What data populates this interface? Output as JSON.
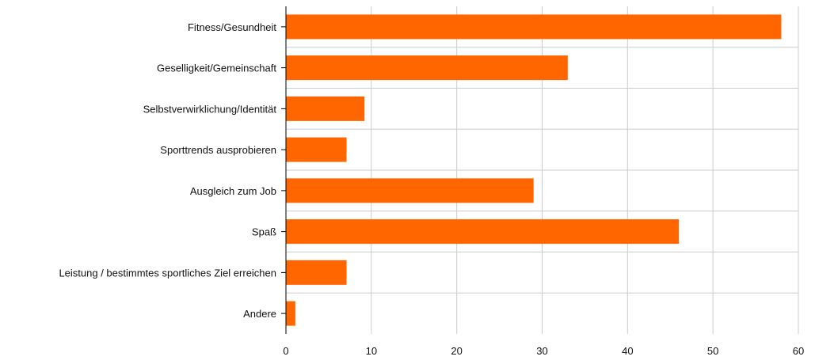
{
  "chart_data": {
    "type": "bar",
    "orientation": "horizontal",
    "title": "",
    "xlabel": "",
    "ylabel": "",
    "categories": [
      "Fitness/Gesundheit",
      "Geselligkeit/Gemeinschaft",
      "Selbstverwirklichung/Identität",
      "Sporttrends ausprobieren",
      "Ausgleich zum Job",
      "Spaß",
      "Leistung / bestimmtes sportliches Ziel erreichen",
      "Andere"
    ],
    "values": [
      58,
      33,
      9.2,
      7.1,
      29,
      46,
      7.1,
      1.1
    ],
    "xlim": [
      0,
      60
    ],
    "xticks": [
      "0",
      "10",
      "20",
      "30",
      "40",
      "50",
      "60"
    ],
    "grid": true,
    "legend": "none",
    "colors": {
      "bar": "#ff6600",
      "grid": "#cccccc",
      "axis": "#000000"
    }
  }
}
